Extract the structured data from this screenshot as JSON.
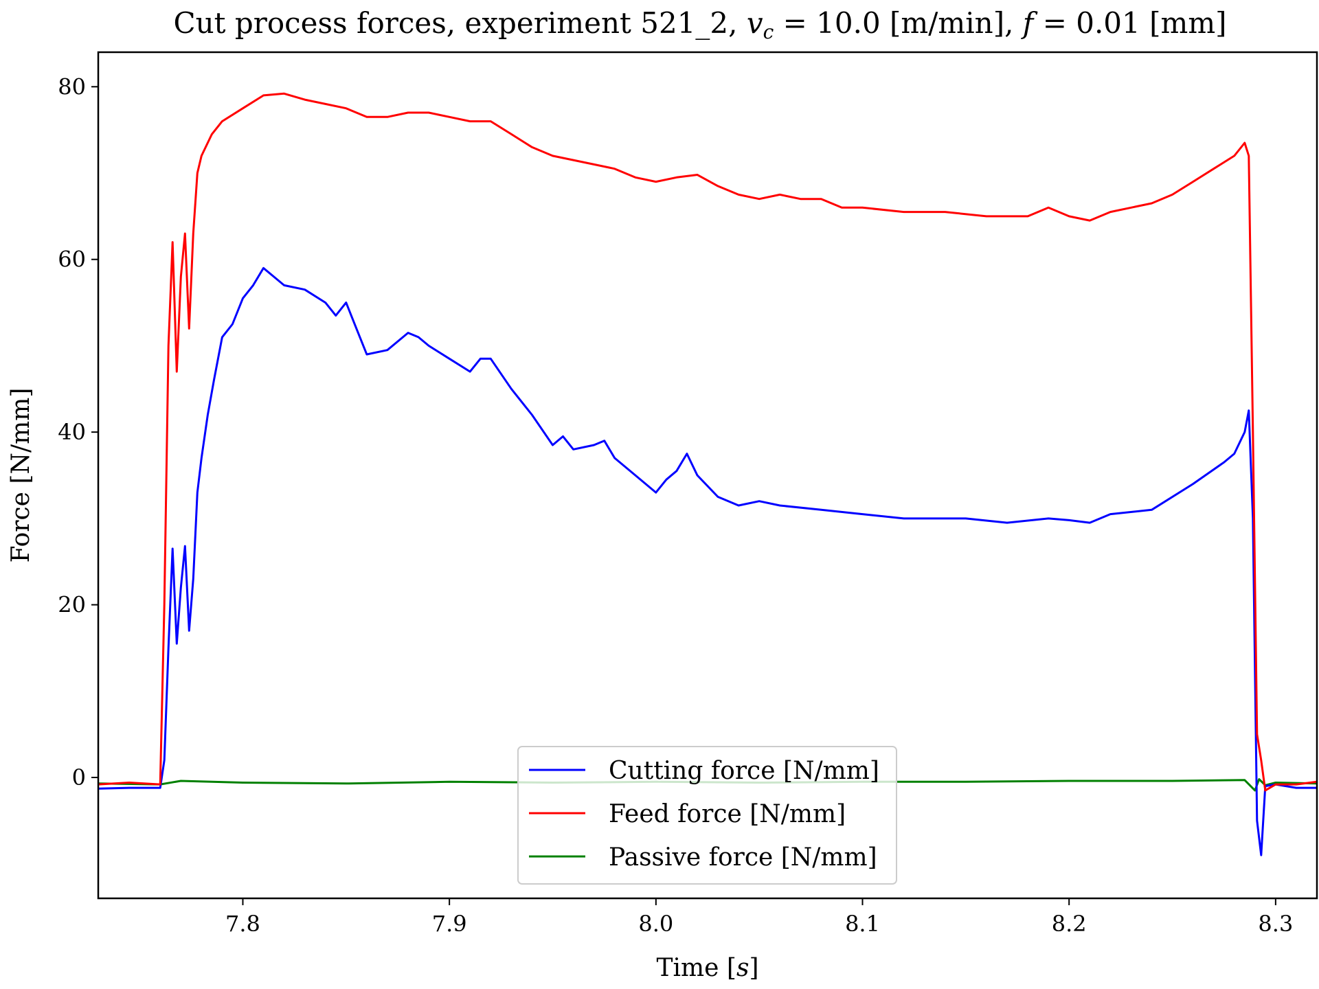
{
  "chart_data": {
    "type": "line",
    "title": "Cut process forces, experiment 521_2, v_c = 10.0 [m/min], f = 0.01 [mm]",
    "title_parts": {
      "prefix": "Cut process forces, experiment 521_2, ",
      "vc_symbol": "v",
      "vc_subscript": "c",
      "vc_rest": " = 10.0 [m/min], ",
      "f_symbol": "f",
      "f_rest": " = 0.01 [mm]"
    },
    "xlabel": "Time [s]",
    "xlabel_parts": {
      "prefix": "Time [",
      "var": "s",
      "suffix": "]"
    },
    "ylabel": "Force [N/mm]",
    "xlim": [
      7.73,
      8.32
    ],
    "ylim": [
      -14,
      84
    ],
    "xticks": [
      7.8,
      7.9,
      8.0,
      8.1,
      8.2,
      8.3
    ],
    "xtick_labels": [
      "7.8",
      "7.9",
      "8.0",
      "8.1",
      "8.2",
      "8.3"
    ],
    "yticks": [
      0,
      20,
      40,
      60,
      80
    ],
    "ytick_labels": [
      "0",
      "20",
      "40",
      "60",
      "80"
    ],
    "grid": false,
    "legend_position": "lower-center",
    "series": [
      {
        "name": "Cutting force [N/mm]",
        "color": "#0000ff",
        "x": [
          7.73,
          7.745,
          7.76,
          7.762,
          7.764,
          7.766,
          7.768,
          7.77,
          7.772,
          7.774,
          7.776,
          7.778,
          7.78,
          7.783,
          7.786,
          7.79,
          7.795,
          7.8,
          7.805,
          7.81,
          7.815,
          7.82,
          7.83,
          7.84,
          7.845,
          7.85,
          7.855,
          7.86,
          7.87,
          7.88,
          7.885,
          7.89,
          7.9,
          7.91,
          7.915,
          7.92,
          7.93,
          7.94,
          7.95,
          7.955,
          7.96,
          7.97,
          7.975,
          7.98,
          7.99,
          8.0,
          8.005,
          8.01,
          8.015,
          8.02,
          8.03,
          8.04,
          8.05,
          8.06,
          8.08,
          8.1,
          8.12,
          8.15,
          8.17,
          8.19,
          8.2,
          8.21,
          8.22,
          8.24,
          8.26,
          8.275,
          8.28,
          8.285,
          8.287,
          8.289,
          8.291,
          8.293,
          8.295,
          8.3,
          8.31,
          8.32
        ],
        "values": [
          -1.3,
          -1.2,
          -1.2,
          2.0,
          15.0,
          26.5,
          15.5,
          22.0,
          26.8,
          17.0,
          23.0,
          33.0,
          37.0,
          42.0,
          46.0,
          51.0,
          52.5,
          55.5,
          57.0,
          59.0,
          58.0,
          57.0,
          56.5,
          55.0,
          53.5,
          55.0,
          52.0,
          49.0,
          49.5,
          51.5,
          51.0,
          50.0,
          48.5,
          47.0,
          48.5,
          48.5,
          45.0,
          42.0,
          38.5,
          39.5,
          38.0,
          38.5,
          39.0,
          37.0,
          35.0,
          33.0,
          34.5,
          35.5,
          37.5,
          35.0,
          32.5,
          31.5,
          32.0,
          31.5,
          31.0,
          30.5,
          30.0,
          30.0,
          29.5,
          30.0,
          29.8,
          29.5,
          30.5,
          31.0,
          34.0,
          36.5,
          37.5,
          40.0,
          42.5,
          30.0,
          -5.0,
          -9.0,
          -1.0,
          -0.8,
          -1.2,
          -1.2
        ]
      },
      {
        "name": "Feed force [N/mm]",
        "color": "#ff0000",
        "x": [
          7.73,
          7.745,
          7.76,
          7.762,
          7.764,
          7.766,
          7.768,
          7.77,
          7.772,
          7.774,
          7.776,
          7.778,
          7.78,
          7.785,
          7.79,
          7.8,
          7.81,
          7.82,
          7.83,
          7.84,
          7.85,
          7.86,
          7.87,
          7.88,
          7.89,
          7.9,
          7.91,
          7.92,
          7.93,
          7.94,
          7.95,
          7.96,
          7.97,
          7.98,
          7.99,
          8.0,
          8.01,
          8.02,
          8.03,
          8.04,
          8.05,
          8.06,
          8.07,
          8.08,
          8.09,
          8.1,
          8.12,
          8.14,
          8.16,
          8.18,
          8.19,
          8.2,
          8.21,
          8.22,
          8.23,
          8.24,
          8.25,
          8.26,
          8.27,
          8.28,
          8.285,
          8.287,
          8.289,
          8.291,
          8.293,
          8.295,
          8.3,
          8.31,
          8.32
        ],
        "values": [
          -0.8,
          -0.6,
          -0.8,
          20.0,
          50.0,
          62.0,
          47.0,
          58.0,
          63.0,
          52.0,
          63.0,
          70.0,
          72.0,
          74.5,
          76.0,
          77.5,
          79.0,
          79.2,
          78.5,
          78.0,
          77.5,
          76.5,
          76.5,
          77.0,
          77.0,
          76.5,
          76.0,
          76.0,
          74.5,
          73.0,
          72.0,
          71.5,
          71.0,
          70.5,
          69.5,
          69.0,
          69.5,
          69.8,
          68.5,
          67.5,
          67.0,
          67.5,
          67.0,
          67.0,
          66.0,
          66.0,
          65.5,
          65.5,
          65.0,
          65.0,
          66.0,
          65.0,
          64.5,
          65.5,
          66.0,
          66.5,
          67.5,
          69.0,
          70.5,
          72.0,
          73.5,
          72.0,
          40.0,
          5.0,
          2.0,
          -1.5,
          -0.8,
          -0.8,
          -0.5
        ]
      },
      {
        "name": "Passive force [N/mm]",
        "color": "#008000",
        "x": [
          7.73,
          7.76,
          7.77,
          7.8,
          7.85,
          7.9,
          7.95,
          8.0,
          8.05,
          8.1,
          8.15,
          8.2,
          8.25,
          8.285,
          8.29,
          8.292,
          8.295,
          8.3,
          8.32
        ],
        "values": [
          -0.7,
          -0.8,
          -0.4,
          -0.6,
          -0.7,
          -0.5,
          -0.6,
          -0.5,
          -0.6,
          -0.5,
          -0.5,
          -0.4,
          -0.4,
          -0.3,
          -1.5,
          -0.2,
          -0.9,
          -0.6,
          -0.7
        ]
      }
    ]
  }
}
